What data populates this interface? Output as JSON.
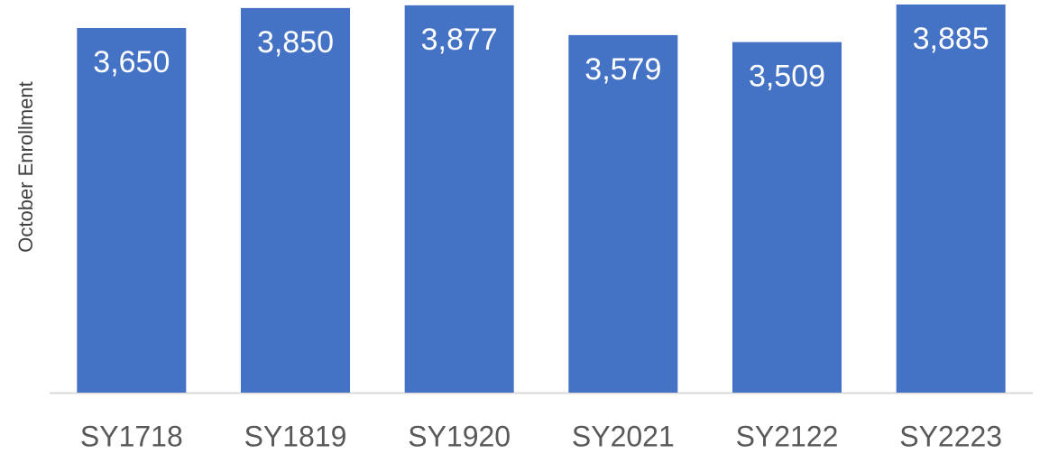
{
  "chart_data": {
    "type": "bar",
    "y_label": "October Enrollment",
    "categories": [
      "SY1718",
      "SY1819",
      "SY1920",
      "SY2021",
      "SY2122",
      "SY2223"
    ],
    "values": [
      3650,
      3850,
      3877,
      3579,
      3509,
      3885
    ],
    "value_labels": [
      "3,650",
      "3,850",
      "3,877",
      "3,579",
      "3,509",
      "3,885"
    ],
    "color": "#4472c4"
  }
}
